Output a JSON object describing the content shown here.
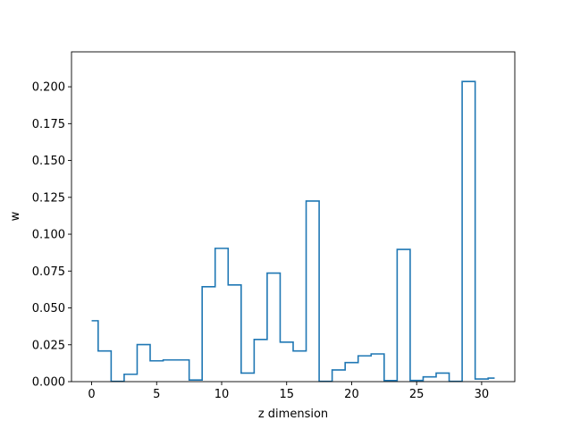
{
  "chart_data": {
    "type": "line",
    "style": "step-mid",
    "title": "",
    "xlabel": "z dimension",
    "ylabel": "w",
    "xlim": [
      -1.55,
      32.55
    ],
    "ylim": [
      0,
      0.2237
    ],
    "xticks": [
      0,
      5,
      10,
      15,
      20,
      25,
      30
    ],
    "xtick_labels": [
      "0",
      "5",
      "10",
      "15",
      "20",
      "25",
      "30"
    ],
    "yticks": [
      0,
      0.025,
      0.05,
      0.075,
      0.1,
      0.125,
      0.15,
      0.175,
      0.2
    ],
    "ytick_labels": [
      "0.000",
      "0.025",
      "0.050",
      "0.075",
      "0.100",
      "0.125",
      "0.150",
      "0.175",
      "0.200"
    ],
    "grid": false,
    "color": "#1f77b4",
    "x": [
      0,
      1,
      2,
      3,
      4,
      5,
      6,
      7,
      8,
      9,
      10,
      11,
      12,
      13,
      14,
      15,
      16,
      17,
      18,
      19,
      20,
      21,
      22,
      23,
      24,
      25,
      26,
      27,
      28,
      29,
      30,
      31
    ],
    "values": [
      0.0413,
      0.0208,
      0.0002,
      0.005,
      0.0251,
      0.0141,
      0.0147,
      0.0147,
      0.0011,
      0.0644,
      0.0904,
      0.0656,
      0.0058,
      0.0286,
      0.0736,
      0.0268,
      0.0208,
      0.1225,
      0.0002,
      0.0079,
      0.0129,
      0.0175,
      0.0188,
      0.0007,
      0.0897,
      0.0008,
      0.0032,
      0.0058,
      0.0002,
      0.2036,
      0.0018,
      0.0024
    ]
  }
}
